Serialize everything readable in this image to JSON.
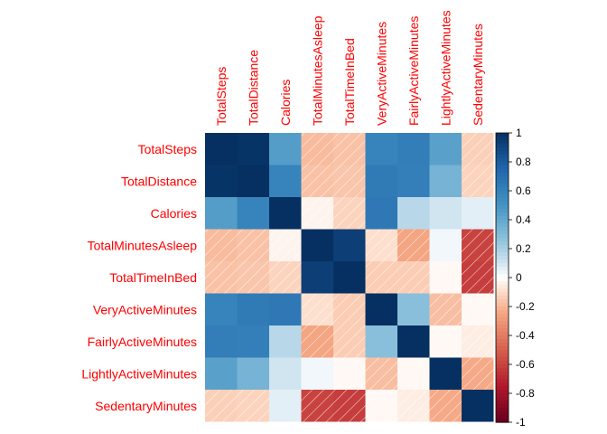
{
  "chart_data": {
    "type": "heatmap",
    "variables": [
      "TotalSteps",
      "TotalDistance",
      "Calories",
      "TotalMinutesAsleep",
      "TotalTimeInBed",
      "VeryActiveMinutes",
      "FairlyActiveMinutes",
      "LightlyActiveMinutes",
      "SedentaryMinutes"
    ],
    "matrix": [
      [
        1.0,
        0.98,
        0.45,
        -0.19,
        -0.17,
        0.59,
        0.62,
        0.43,
        -0.13
      ],
      [
        0.98,
        1.0,
        0.59,
        -0.17,
        -0.16,
        0.64,
        0.61,
        0.34,
        -0.12
      ],
      [
        0.45,
        0.59,
        1.0,
        -0.03,
        -0.12,
        0.65,
        0.16,
        0.1,
        0.06
      ],
      [
        -0.19,
        -0.17,
        -0.03,
        1.0,
        0.93,
        -0.09,
        -0.25,
        0.03,
        -0.6
      ],
      [
        -0.17,
        -0.16,
        -0.12,
        0.93,
        1.0,
        -0.14,
        -0.14,
        -0.02,
        -0.62
      ],
      [
        0.59,
        0.64,
        0.65,
        -0.09,
        -0.14,
        1.0,
        0.28,
        -0.18,
        -0.02
      ],
      [
        0.62,
        0.61,
        0.16,
        -0.25,
        -0.14,
        0.28,
        1.0,
        -0.02,
        -0.05
      ],
      [
        0.43,
        0.34,
        0.1,
        0.03,
        -0.02,
        -0.18,
        -0.02,
        1.0,
        -0.24
      ],
      [
        -0.13,
        -0.12,
        0.06,
        -0.6,
        -0.62,
        -0.02,
        -0.05,
        -0.24,
        1.0
      ]
    ],
    "colorbar_ticks": [
      "1",
      "0.8",
      "0.6",
      "0.4",
      "0.2",
      "0",
      "-0.2",
      "-0.4",
      "-0.6",
      "-0.8",
      "-1"
    ],
    "range": [
      -1,
      1
    ],
    "colors": {
      "positive_max": "#053061",
      "neutral": "#ffffff",
      "negative_max": "#67001f",
      "label": "#ff0000"
    },
    "diagonal_pattern_for_negative": true,
    "title": "",
    "xlabel": "",
    "ylabel": ""
  }
}
